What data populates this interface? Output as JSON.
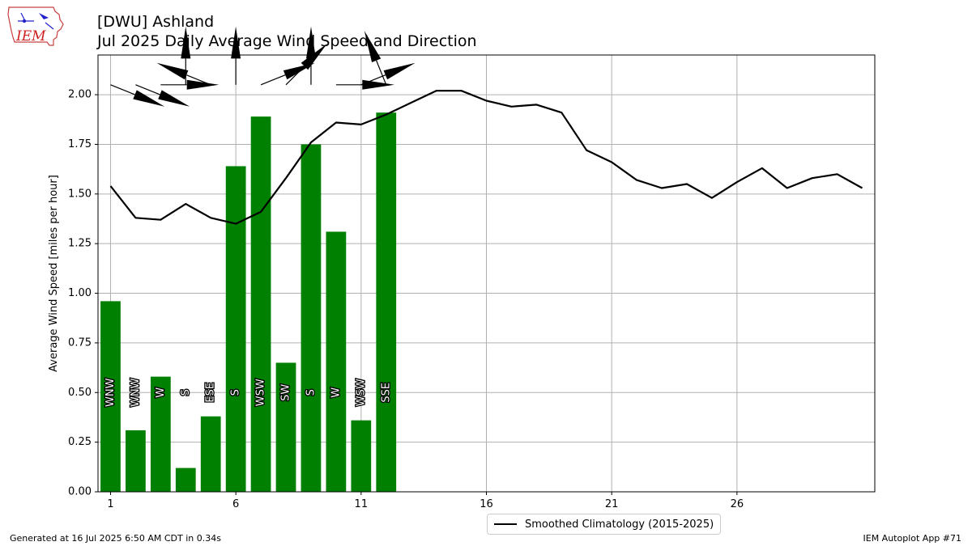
{
  "header": {
    "station": "[DWU] Ashland",
    "subtitle": "Jul 2025 Daily Average Wind Speed and Direction",
    "logo_text": "IEM"
  },
  "footer": {
    "generated": "Generated at 16 Jul 2025 6:50 AM CDT in 0.34s",
    "app": "IEM Autoplot App #71"
  },
  "legend": {
    "climatology_label": "Smoothed Climatology (2015-2025)"
  },
  "colors": {
    "bar": "#008000",
    "line": "#000000",
    "grid": "#b0b0b0"
  },
  "chart_data": {
    "type": "bar",
    "title": "Jul 2025 Daily Average Wind Speed and Direction",
    "ylabel": "Average Wind Speed [miles per hour]",
    "xlabel": "",
    "xlim": [
      0.5,
      31.5
    ],
    "ylim": [
      0,
      2.2
    ],
    "xticks": [
      1,
      6,
      11,
      16,
      21,
      26
    ],
    "yticks": [
      0.0,
      0.25,
      0.5,
      0.75,
      1.0,
      1.25,
      1.5,
      1.75,
      2.0
    ],
    "ytick_labels": [
      "0.00",
      "0.25",
      "0.50",
      "0.75",
      "1.00",
      "1.25",
      "1.50",
      "1.75",
      "2.00"
    ],
    "grid": true,
    "legend_position": "bottom-center",
    "bars": {
      "days": [
        1,
        2,
        3,
        4,
        5,
        6,
        7,
        8,
        9,
        10,
        11,
        12
      ],
      "speed": [
        0.96,
        0.31,
        0.58,
        0.12,
        0.38,
        1.64,
        1.89,
        0.65,
        1.75,
        1.31,
        0.36,
        1.91
      ],
      "direction_label": [
        "WNW",
        "WNW",
        "W",
        "S",
        "ESE",
        "S",
        "WSW",
        "SW",
        "S",
        "W",
        "WSW",
        "SSE"
      ],
      "direction_deg": [
        292,
        292,
        270,
        180,
        112,
        180,
        248,
        225,
        180,
        270,
        248,
        158
      ]
    },
    "series": [
      {
        "name": "Smoothed Climatology (2015-2025)",
        "x": [
          1,
          2,
          3,
          4,
          5,
          6,
          7,
          8,
          9,
          10,
          11,
          12,
          13,
          14,
          15,
          16,
          17,
          18,
          19,
          20,
          21,
          22,
          23,
          24,
          25,
          26,
          27,
          28,
          29,
          30,
          31
        ],
        "values": [
          1.54,
          1.38,
          1.37,
          1.45,
          1.38,
          1.35,
          1.41,
          1.58,
          1.76,
          1.86,
          1.85,
          1.9,
          1.96,
          2.02,
          2.02,
          1.97,
          1.94,
          1.95,
          1.91,
          1.72,
          1.66,
          1.57,
          1.53,
          1.55,
          1.48,
          1.56,
          1.63,
          1.53,
          1.58,
          1.6,
          1.53
        ]
      }
    ]
  }
}
